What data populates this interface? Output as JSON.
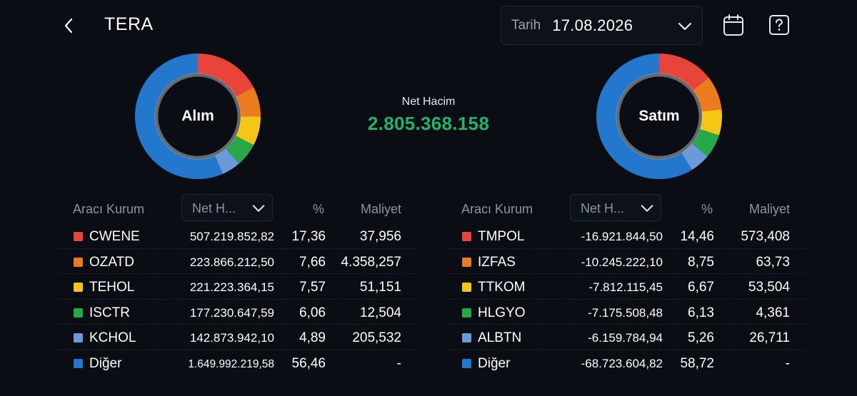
{
  "header": {
    "title": "TERA",
    "date_label": "Tarih",
    "date_value": "17.08.2026"
  },
  "colors": {
    "red": "#e8443a",
    "orange": "#ec7a1f",
    "yellow": "#f5c518",
    "green": "#26a848",
    "lightblue": "#6b9ad8",
    "blue": "#2377cc",
    "net_green": "#22b36a"
  },
  "summary": {
    "net_title": "Net Hacim",
    "net_value": "2.805.368.158"
  },
  "buy": {
    "donut_label": "Alım",
    "col_broker": "Aracı Kurum",
    "col_net": "Net H...",
    "col_pct": "%",
    "col_cost": "Maliyet",
    "rows": [
      {
        "name": "CWENE",
        "net": "507.219.852,82",
        "pct": "17,36",
        "cost": "37,956",
        "color": "#e8443a"
      },
      {
        "name": "OZATD",
        "net": "223.866.212,50",
        "pct": "7,66",
        "cost": "4.358,257",
        "color": "#ec7a1f"
      },
      {
        "name": "TEHOL",
        "net": "221.223.364,15",
        "pct": "7,57",
        "cost": "51,151",
        "color": "#f5c518"
      },
      {
        "name": "ISCTR",
        "net": "177.230.647,59",
        "pct": "6,06",
        "cost": "12,504",
        "color": "#26a848"
      },
      {
        "name": "KCHOL",
        "net": "142.873.942,10",
        "pct": "4,89",
        "cost": "205,532",
        "color": "#6b9ad8"
      },
      {
        "name": "Diğer",
        "net": "1.649.992.219,58",
        "pct": "56,46",
        "cost": "-",
        "color": "#2377cc"
      }
    ]
  },
  "sell": {
    "donut_label": "Satım",
    "col_broker": "Aracı Kurum",
    "col_net": "Net H...",
    "col_pct": "%",
    "col_cost": "Maliyet",
    "rows": [
      {
        "name": "TMPOL",
        "net": "-16.921.844,50",
        "pct": "14,46",
        "cost": "573,408",
        "color": "#e8443a"
      },
      {
        "name": "IZFAS",
        "net": "-10.245.222,10",
        "pct": "8,75",
        "cost": "63,73",
        "color": "#ec7a1f"
      },
      {
        "name": "TTKOM",
        "net": "-7.812.115,45",
        "pct": "6,67",
        "cost": "53,504",
        "color": "#f5c518"
      },
      {
        "name": "HLGYO",
        "net": "-7.175.508,48",
        "pct": "6,13",
        "cost": "4,361",
        "color": "#26a848"
      },
      {
        "name": "ALBTN",
        "net": "-6.159.784,94",
        "pct": "5,26",
        "cost": "26,711",
        "color": "#6b9ad8"
      },
      {
        "name": "Diğer",
        "net": "-68.723.604,82",
        "pct": "58,72",
        "cost": "-",
        "color": "#2377cc"
      }
    ]
  },
  "icons": {
    "back": "chevron-left-icon",
    "date_toggle": "chevron-down-icon",
    "calendar": "calendar-icon",
    "help": "help-icon"
  }
}
